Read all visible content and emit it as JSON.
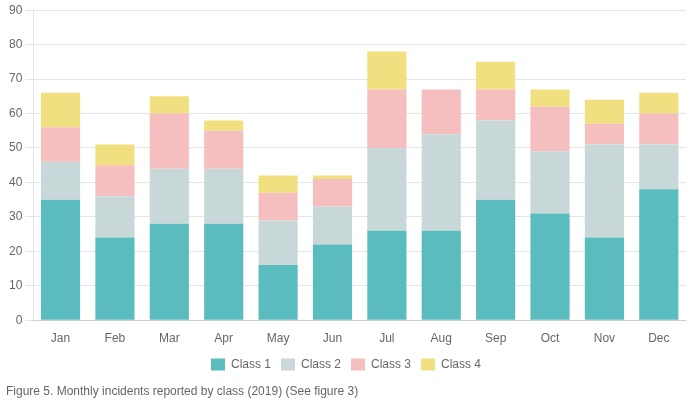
{
  "chart_data": {
    "type": "bar",
    "title": "Figure 5. Monthly incidents reported by class (2019) (See figure 3)",
    "categories": [
      "Jan",
      "Feb",
      "Mar",
      "Apr",
      "May",
      "Jun",
      "Jul",
      "Aug",
      "Sep",
      "Oct",
      "Nov",
      "Dec"
    ],
    "series": [
      {
        "name": "Class 1",
        "color": "#5bbcbf",
        "values": [
          35,
          24,
          28,
          28,
          16,
          22,
          26,
          26,
          35,
          31,
          24,
          38
        ]
      },
      {
        "name": "Class 2",
        "color": "#c8d8d8",
        "values": [
          11,
          12,
          16,
          16,
          13,
          11,
          24,
          28,
          23,
          18,
          27,
          13
        ]
      },
      {
        "name": "Class 3",
        "color": "#f5bfbf",
        "values": [
          10,
          9,
          16,
          11,
          8,
          8,
          17,
          13,
          9,
          13,
          6,
          9
        ]
      },
      {
        "name": "Class 4",
        "color": "#f0e080",
        "values": [
          10,
          6,
          5,
          3,
          5,
          1,
          11,
          0,
          8,
          5,
          7,
          6
        ]
      }
    ],
    "stacked": true,
    "ylim": [
      0,
      90
    ],
    "yticks": [
      0,
      10,
      20,
      30,
      40,
      50,
      60,
      70,
      80,
      90
    ],
    "grid": true,
    "legend": "bottom"
  }
}
